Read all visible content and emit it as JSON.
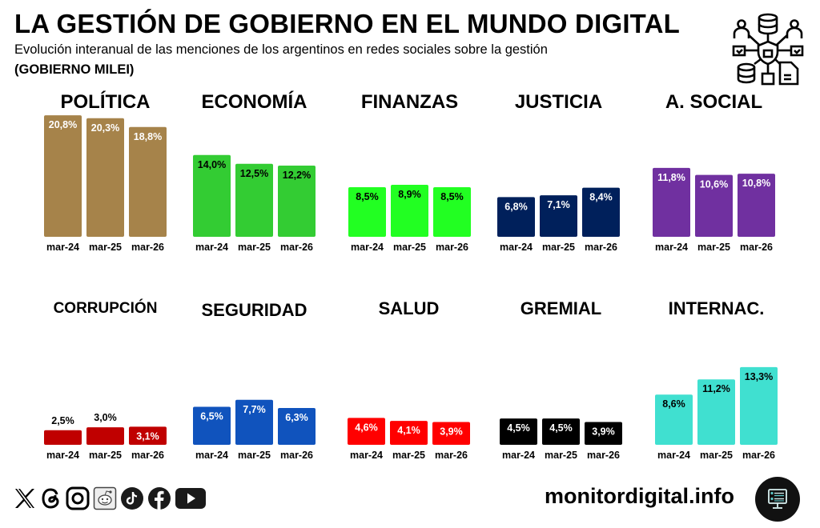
{
  "header": {
    "title": "LA GESTIÓN DE GOBIERNO EN EL MUNDO DIGITAL",
    "subtitle": "Evolución interanual de las menciones de los argentinos en redes sociales sobre la gestión",
    "subtitle_bold": "(GOBIERNO MILEI)",
    "logo_icon": "data-network-security-icon"
  },
  "footer": {
    "social_icons": [
      "x-icon",
      "threads-icon",
      "instagram-icon",
      "reddit-icon",
      "tiktok-icon",
      "facebook-icon",
      "youtube-icon"
    ],
    "site": "monitordigital.info",
    "site_icon": "monitor-dashboard-icon"
  },
  "chart_data": [
    {
      "type": "bar",
      "title": "POLÍTICA",
      "categories": [
        "mar-24",
        "mar-25",
        "mar-26"
      ],
      "values": [
        20.8,
        20.3,
        18.8
      ],
      "labels": [
        "20,8%",
        "20,3%",
        "18,8%"
      ],
      "color": "#A6834A",
      "label_color": "#ffffff",
      "ylim": [
        0,
        21
      ]
    },
    {
      "type": "bar",
      "title": "ECONOMÍA",
      "categories": [
        "mar-24",
        "mar-25",
        "mar-26"
      ],
      "values": [
        14.0,
        12.5,
        12.2
      ],
      "labels": [
        "14,0%",
        "12,5%",
        "12,2%"
      ],
      "color": "#33CC33",
      "label_color": "#000000",
      "ylim": [
        0,
        21
      ]
    },
    {
      "type": "bar",
      "title": "FINANZAS",
      "categories": [
        "mar-24",
        "mar-25",
        "mar-26"
      ],
      "values": [
        8.5,
        8.9,
        8.5
      ],
      "labels": [
        "8,5%",
        "8,9%",
        "8,5%"
      ],
      "color": "#22FF22",
      "label_color": "#000000",
      "ylim": [
        0,
        21
      ]
    },
    {
      "type": "bar",
      "title": "JUSTICIA",
      "categories": [
        "mar-24",
        "mar-25",
        "mar-26"
      ],
      "values": [
        6.8,
        7.1,
        8.4
      ],
      "labels": [
        "6,8%",
        "7,1%",
        "8,4%"
      ],
      "color": "#00205B",
      "label_color": "#ffffff",
      "ylim": [
        0,
        21
      ]
    },
    {
      "type": "bar",
      "title": "A. SOCIAL",
      "categories": [
        "mar-24",
        "mar-25",
        "mar-26"
      ],
      "values": [
        11.8,
        10.6,
        10.8
      ],
      "labels": [
        "11,8%",
        "10,6%",
        "10,8%"
      ],
      "color": "#7030A0",
      "label_color": "#ffffff",
      "ylim": [
        0,
        21
      ]
    },
    {
      "type": "bar",
      "title": "CORRUPCIÓN",
      "categories": [
        "mar-24",
        "mar-25",
        "mar-26"
      ],
      "values": [
        2.5,
        3.0,
        3.1
      ],
      "labels": [
        "2,5%",
        "3,0%",
        "3,1%"
      ],
      "color": "#C00000",
      "label_color": "#ffffff",
      "ylim": [
        0,
        21
      ]
    },
    {
      "type": "bar",
      "title": "SEGURIDAD",
      "categories": [
        "mar-24",
        "mar-25",
        "mar-26"
      ],
      "values": [
        6.5,
        7.7,
        6.3
      ],
      "labels": [
        "6,5%",
        "7,7%",
        "6,3%"
      ],
      "color": "#1053BD",
      "label_color": "#ffffff",
      "ylim": [
        0,
        21
      ]
    },
    {
      "type": "bar",
      "title": "SALUD",
      "categories": [
        "mar-24",
        "mar-25",
        "mar-26"
      ],
      "values": [
        4.6,
        4.1,
        3.9
      ],
      "labels": [
        "4,6%",
        "4,1%",
        "3,9%"
      ],
      "color": "#FF0000",
      "label_color": "#ffffff",
      "ylim": [
        0,
        21
      ]
    },
    {
      "type": "bar",
      "title": "GREMIAL",
      "categories": [
        "mar-24",
        "mar-25",
        "mar-26"
      ],
      "values": [
        4.5,
        4.5,
        3.9
      ],
      "labels": [
        "4,5%",
        "4,5%",
        "3,9%"
      ],
      "color": "#000000",
      "label_color": "#ffffff",
      "ylim": [
        0,
        21
      ]
    },
    {
      "type": "bar",
      "title": "INTERNAC.",
      "categories": [
        "mar-24",
        "mar-25",
        "mar-26"
      ],
      "values": [
        8.6,
        11.2,
        13.3
      ],
      "labels": [
        "8,6%",
        "11,2%",
        "13,3%"
      ],
      "color": "#40E0D0",
      "label_color": "#000000",
      "ylim": [
        0,
        21
      ]
    }
  ]
}
